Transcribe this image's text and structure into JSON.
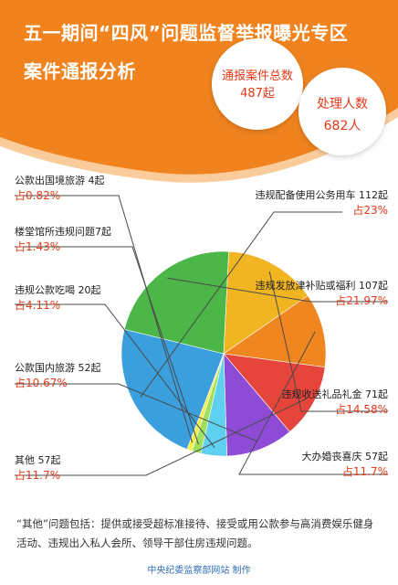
{
  "header": {
    "title_line1": "五一期间“四风”问题监督举报曝光专区",
    "title_line2": "案件通报分析",
    "total_cases_label": "通报案件总数",
    "total_cases_value": "487起",
    "people_label": "处理人数",
    "people_value": "682人"
  },
  "colors": {
    "header_orange": "#f0831e",
    "header_light": "#f6a24a",
    "accent_red": "#e43a17",
    "leader_line": "#4a4a4a"
  },
  "chart_data": {
    "type": "pie",
    "title": "",
    "slices": [
      {
        "name": "违规配备使用公务用车",
        "count": "112起",
        "value": 23,
        "pct_label": "占23%",
        "color": "#3a9fdc"
      },
      {
        "name": "违规发放津补贴或福利",
        "count": "107起",
        "value": 21.97,
        "pct_label": "占21.97%",
        "color": "#4cb648"
      },
      {
        "name": "违规收送礼品礼金",
        "count": "71起",
        "value": 14.58,
        "pct_label": "占14.58%",
        "color": "#f0b521"
      },
      {
        "name": "大办婚丧喜庆",
        "count": "57起",
        "value": 11.7,
        "pct_label": "占11.7%",
        "color": "#f0861f"
      },
      {
        "name": "其他",
        "count": "57起",
        "value": 11.7,
        "pct_label": "占11.7%",
        "color": "#e5453a"
      },
      {
        "name": "公款国内旅游",
        "count": "52起",
        "value": 10.67,
        "pct_label": "占10.67%",
        "color": "#8e4cd6"
      },
      {
        "name": "违规公款吃喝",
        "count": "20起",
        "value": 4.11,
        "pct_label": "占4.11%",
        "color": "#5fd0f0"
      },
      {
        "name": "楼堂馆所违规问题",
        "count": "7起",
        "value": 1.43,
        "pct_label": "占1.43%",
        "color": "#9fe05f"
      },
      {
        "name": "公款出国境旅游",
        "count": "4起",
        "value": 0.82,
        "pct_label": "占0.82%",
        "color": "#f7ec4a"
      }
    ]
  },
  "labels": {
    "car": "违规配备使用公务用车 112起",
    "subsidy": "违规发放津补贴或福利 107起",
    "gift": "违规收送礼品礼金 71起",
    "wedding": "大办婚丧喜庆 57起",
    "other": "其他 57起",
    "domestic": "公款国内旅游 52起",
    "dining": "违规公款吃喝 20起",
    "building": "楼堂馆所违规问题7起",
    "abroad": "公款出国境旅游 4起"
  },
  "note": "“其他”问题包括：提供或接受超标准接待、接受或用公款参与高消费娱乐健身活动、违规出入私人会所、领导干部住房违规问题。",
  "credit": "中央纪委监察部网站 制作"
}
